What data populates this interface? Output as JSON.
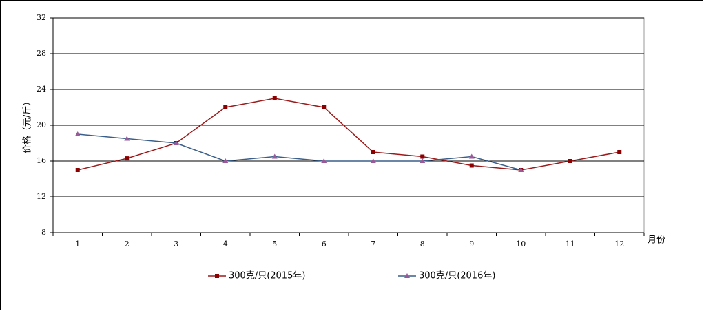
{
  "chart_data": {
    "type": "line",
    "y_label": "价格（元/斤）",
    "x_label": "月份",
    "categories": [
      "1",
      "2",
      "3",
      "4",
      "5",
      "6",
      "7",
      "8",
      "9",
      "10",
      "11",
      "12"
    ],
    "series": [
      {
        "name": "300克/只(2015年)",
        "color": "#9b1b1b",
        "marker": "square",
        "marker_color": "#8b0000",
        "values": [
          15,
          16.3,
          18,
          22,
          23,
          22,
          17,
          16.5,
          15.5,
          15,
          16,
          17
        ]
      },
      {
        "name": "300克/只(2016年)",
        "color": "#3a5f8a",
        "marker": "triangle",
        "marker_color": "#9a5a9a",
        "values": [
          19,
          18.5,
          18,
          16,
          16.5,
          16,
          16,
          16,
          16.5,
          15,
          null,
          null
        ]
      }
    ],
    "ylim": [
      8,
      32
    ],
    "yticks": [
      8,
      12,
      16,
      20,
      24,
      28,
      32
    ],
    "grid": true
  }
}
